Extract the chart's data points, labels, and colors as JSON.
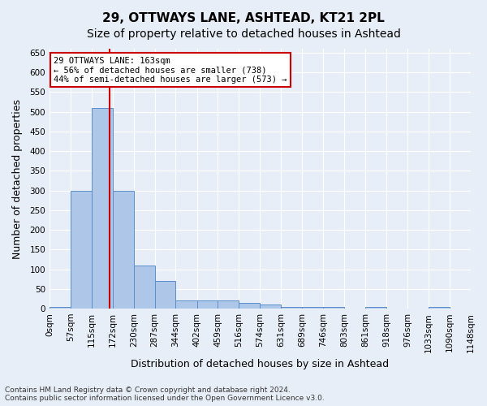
{
  "title1": "29, OTTWAYS LANE, ASHTEAD, KT21 2PL",
  "title2": "Size of property relative to detached houses in Ashtead",
  "xlabel": "Distribution of detached houses by size in Ashtead",
  "ylabel": "Number of detached properties",
  "annotation_line1": "29 OTTWAYS LANE: 163sqm",
  "annotation_line2": "← 56% of detached houses are smaller (738)",
  "annotation_line3": "44% of semi-detached houses are larger (573) →",
  "footer1": "Contains HM Land Registry data © Crown copyright and database right 2024.",
  "footer2": "Contains public sector information licensed under the Open Government Licence v3.0.",
  "bin_edges": [
    0,
    57,
    115,
    172,
    230,
    287,
    344,
    402,
    459,
    516,
    574,
    631,
    689,
    746,
    803,
    861,
    918,
    976,
    1033,
    1090,
    1148
  ],
  "bar_heights": [
    5,
    300,
    510,
    300,
    110,
    70,
    20,
    20,
    20,
    15,
    10,
    5,
    5,
    5,
    0,
    5,
    0,
    0,
    5,
    0
  ],
  "bar_color": "#aec6e8",
  "bar_edge_color": "#5a8fcc",
  "red_line_x": 163,
  "ylim": [
    0,
    660
  ],
  "yticks": [
    0,
    50,
    100,
    150,
    200,
    250,
    300,
    350,
    400,
    450,
    500,
    550,
    600,
    650
  ],
  "bg_color": "#e8eef7",
  "plot_bg_color": "#e8eef7",
  "annotation_box_color": "white",
  "annotation_box_edge": "#cc0000",
  "red_line_color": "#cc0000",
  "title1_fontsize": 11,
  "title2_fontsize": 10,
  "xlabel_fontsize": 9,
  "ylabel_fontsize": 9,
  "tick_fontsize": 7.5
}
